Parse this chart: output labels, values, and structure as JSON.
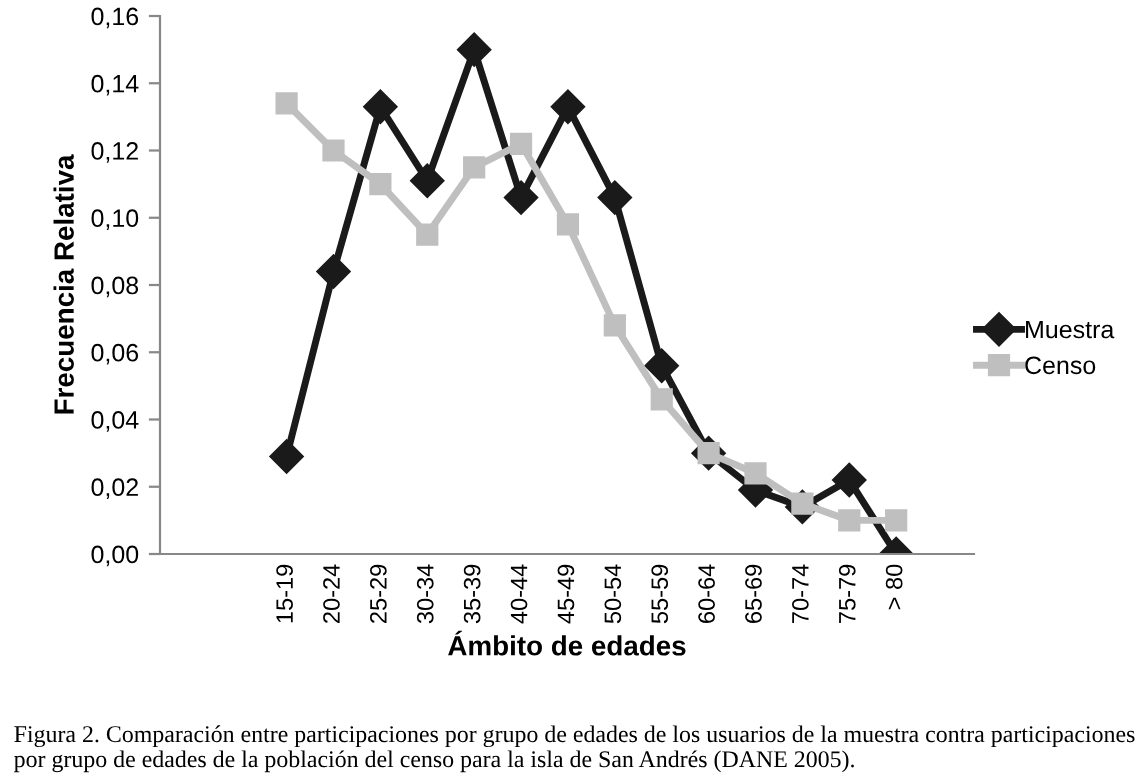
{
  "chart_data": {
    "type": "line",
    "xlabel": "Ámbito de edades",
    "ylabel": "Frecuencia Relativa",
    "categories": [
      "15-19",
      "20-24",
      "25-29",
      "30-34",
      "35-39",
      "40-44",
      "45-49",
      "50-54",
      "55-59",
      "60-64",
      "65-69",
      "70-74",
      "75-79",
      "> 80"
    ],
    "series": [
      {
        "name": "Muestra",
        "color": "#1a1a1a",
        "marker": "diamond",
        "values": [
          0.029,
          0.084,
          0.133,
          0.111,
          0.15,
          0.106,
          0.133,
          0.106,
          0.056,
          0.03,
          0.019,
          0.014,
          0.022,
          0.0
        ]
      },
      {
        "name": "Censo",
        "color": "#bfbfbf",
        "marker": "square",
        "values": [
          0.134,
          0.12,
          0.11,
          0.095,
          0.115,
          0.122,
          0.098,
          0.068,
          0.046,
          0.03,
          0.024,
          0.015,
          0.01,
          0.01
        ]
      }
    ],
    "ylim": [
      0,
      0.16
    ],
    "yticks": [
      {
        "value": 0,
        "label": "0,00"
      },
      {
        "value": 0.02,
        "label": "0,02"
      },
      {
        "value": 0.04,
        "label": "0,04"
      },
      {
        "value": 0.06,
        "label": "0,06"
      },
      {
        "value": 0.08,
        "label": "0,08"
      },
      {
        "value": 0.1,
        "label": "0,10"
      },
      {
        "value": 0.12,
        "label": "0,12"
      },
      {
        "value": 0.14,
        "label": "0,14"
      },
      {
        "value": 0.16,
        "label": "0,16"
      }
    ],
    "grid": false,
    "legend": "right",
    "line_style": "solid",
    "annotations": [
      "Figura 2. Comparación entre participaciones por grupo de edades de los usuarios de la muestra contra participaciones por grupo de edades de la población del censo para la isla de San Andrés (DANE 2005)."
    ]
  }
}
